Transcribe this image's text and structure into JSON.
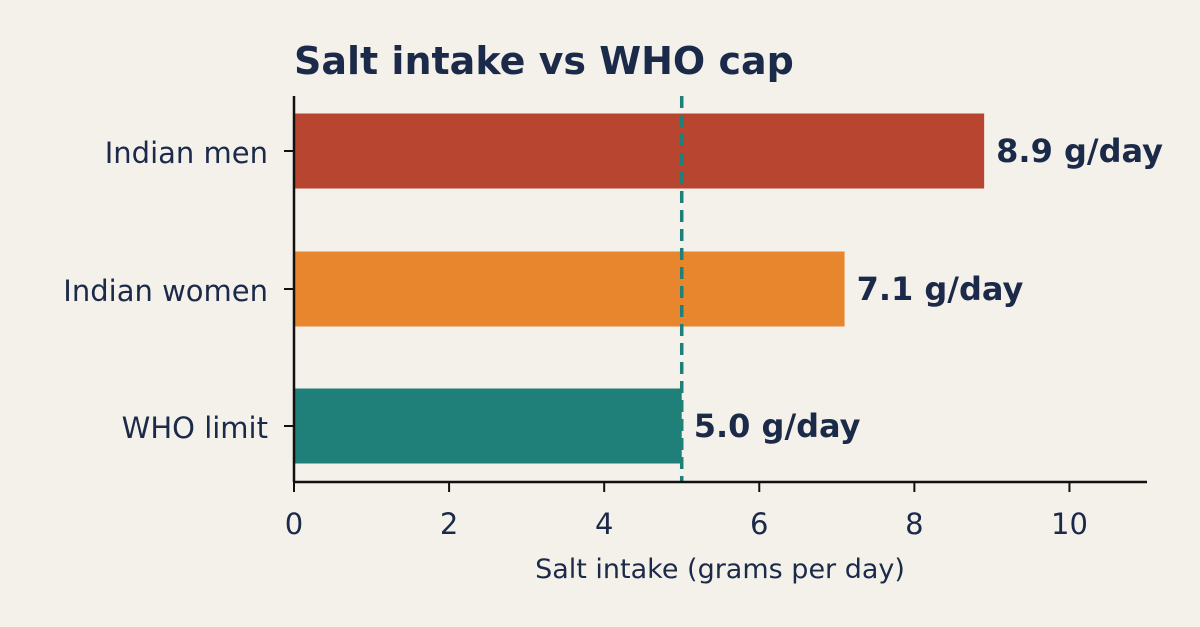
{
  "chart_data": {
    "type": "bar",
    "orientation": "horizontal",
    "title": "Salt intake vs WHO cap",
    "xlabel": "Salt intake (grams per day)",
    "ylabel": "",
    "categories": [
      "Indian men",
      "Indian women",
      "WHO limit"
    ],
    "values": [
      8.9,
      7.1,
      5.0
    ],
    "value_labels": [
      "8.9 g/day",
      "7.1 g/day",
      "5.0 g/day"
    ],
    "bar_colors": [
      "#b84530",
      "#e8862e",
      "#1f7f79"
    ],
    "reference_line": {
      "value": 5.0,
      "style": "dashed",
      "color": "#1f7f79"
    },
    "xlim": [
      0,
      11
    ],
    "xticks": [
      0,
      2,
      4,
      6,
      8,
      10
    ],
    "xtick_labels": [
      "0",
      "2",
      "4",
      "6",
      "8",
      "10"
    ],
    "grid": false,
    "legend": "none"
  }
}
